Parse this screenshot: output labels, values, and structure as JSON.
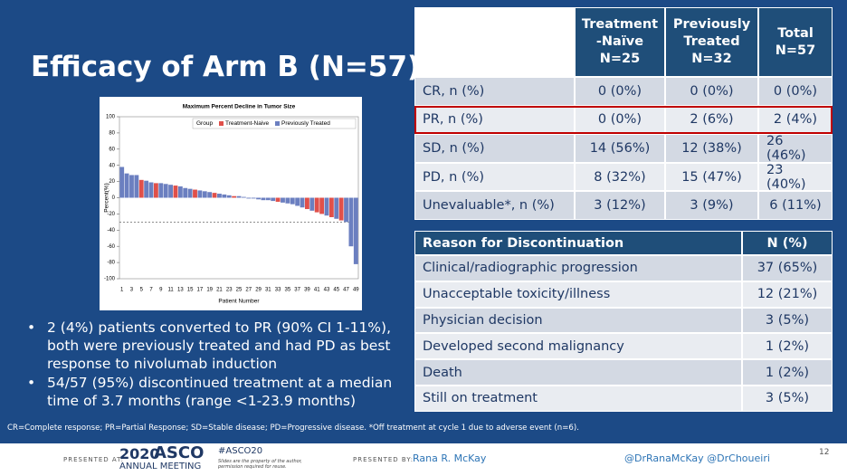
{
  "title": "Efficacy of Arm B (N=57)",
  "chart_data": {
    "type": "bar",
    "title": "Maximum Percent Decline in Tumor Size",
    "x_label": "Patient Number",
    "y_label": "Percent(%)",
    "legend_title": "Group",
    "categories": [
      "1",
      null,
      "3",
      null,
      "5",
      null,
      "7",
      null,
      "9",
      null,
      "11",
      null,
      "13",
      null,
      "15",
      null,
      "17",
      null,
      "19",
      null,
      "21",
      null,
      "23",
      null,
      "25",
      null,
      "27",
      null,
      "29",
      null,
      "31",
      null,
      "33",
      null,
      "35",
      null,
      "37",
      null,
      "39",
      null,
      "41",
      null,
      "43",
      null,
      "45",
      null,
      "47",
      null,
      "49"
    ],
    "series": [
      {
        "name": "Treatment-Naive",
        "color": "#e0504a",
        "values": [
          null,
          null,
          null,
          null,
          22,
          null,
          null,
          18,
          null,
          null,
          null,
          15,
          null,
          null,
          null,
          10,
          null,
          null,
          null,
          6,
          null,
          null,
          null,
          2,
          null,
          null,
          null,
          null,
          null,
          null,
          null,
          null,
          -5,
          null,
          null,
          null,
          null,
          null,
          -14,
          null,
          -18,
          -20,
          null,
          -24,
          null,
          -28,
          null,
          null,
          null
        ]
      },
      {
        "name": "Previously Treated",
        "color": "#6b7fc0",
        "values": [
          38,
          30,
          28,
          28,
          null,
          21,
          19,
          null,
          18,
          17,
          16,
          null,
          14,
          12,
          11,
          null,
          9,
          8,
          7,
          null,
          5,
          4,
          3,
          null,
          2,
          1,
          -1,
          -1,
          -2,
          -3,
          -3,
          -4,
          null,
          -6,
          -7,
          -8,
          -10,
          -12,
          null,
          -16,
          null,
          null,
          -22,
          null,
          -26,
          null,
          -30,
          -60,
          -82
        ]
      }
    ],
    "ylim": [
      -100,
      100
    ],
    "yticks": [
      -100,
      -80,
      -60,
      -40,
      -20,
      0,
      20,
      40,
      60,
      80,
      100
    ],
    "reference_line": -30,
    "stacked": true
  },
  "response_table": {
    "header": [
      [],
      [
        "Treatment",
        "-Naïve",
        "N=25"
      ],
      [
        "Previously",
        "Treated",
        "N=32"
      ],
      [
        "Total",
        "N=57"
      ]
    ],
    "rows": [
      [
        "CR, n (%)",
        "0 (0%)",
        "0 (0%)",
        "0 (0%)"
      ],
      [
        "PR, n (%)",
        "0 (0%)",
        "2 (6%)",
        "2 (4%)"
      ],
      [
        "SD, n (%)",
        "14 (56%)",
        "12 (38%)",
        "26 (46%)"
      ],
      [
        "PD, n (%)",
        "8 (32%)",
        "15 (47%)",
        "23 (40%)"
      ],
      [
        "Unevaluable*, n (%)",
        "3 (12%)",
        "3 (9%)",
        "6 (11%)"
      ]
    ],
    "highlighted_row": 1
  },
  "discontinuation_table": {
    "header": [
      "Reason for Discontinuation",
      "N (%)"
    ],
    "rows": [
      [
        "Clinical/radiographic progression",
        "37 (65%)"
      ],
      [
        "Unacceptable toxicity/illness",
        "12 (21%)"
      ],
      [
        "Physician decision",
        "3 (5%)"
      ],
      [
        "Developed second malignancy",
        "1 (2%)"
      ],
      [
        "Death",
        "1 (2%)"
      ],
      [
        "Still on treatment",
        "3 (5%)"
      ]
    ]
  },
  "bullets": [
    "2 (4%) patients converted to PR (90% CI 1-11%), both were previously treated and had PD as best response to nivolumab induction",
    "54/57 (95%) discontinued treatment at a median time of 3.7 months (range <1-23.9 months)"
  ],
  "footnote": "CR=Complete response; PR=Partial Response; SD=Stable disease; PD=Progressive disease. *Off treatment at cycle 1 due to adverse event (n=6).",
  "footer": {
    "presented_at": "PRESENTED AT:",
    "year": "2020",
    "org": "ASCO",
    "meeting": "ANNUAL MEETING",
    "hashtag": "#ASCO20",
    "notice": "Slides are the property of the author, permission required for reuse.",
    "presented_by": "PRESENTED BY:",
    "presenter": "Rana R. McKay",
    "twitter": "@DrRanaMcKay @DrChoueiri",
    "page": "12"
  }
}
